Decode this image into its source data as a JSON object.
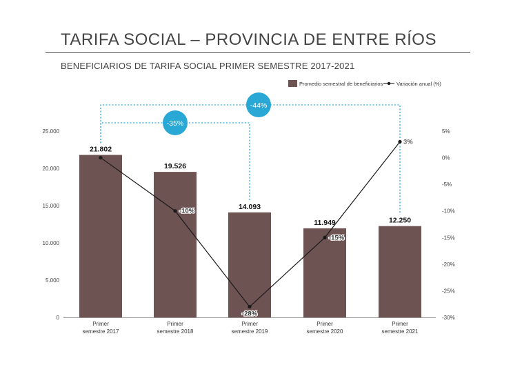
{
  "title": "TARIFA SOCIAL – PROVINCIA DE ENTRE RÍOS",
  "subtitle": "BENEFICIARIOS DE TARIFA SOCIAL PRIMER SEMESTRE 2017-2021",
  "colors": {
    "bar": "#6d5352",
    "line": "#1a1a1a",
    "callout": "#29a8d6",
    "axis": "#999999"
  },
  "chart_data": {
    "type": "bar",
    "categories": [
      [
        "Primer",
        "semestre 2017"
      ],
      [
        "Primer",
        "semestre 2018"
      ],
      [
        "Primer",
        "semestre 2019"
      ],
      [
        "Primer",
        "semestre 2020"
      ],
      [
        "Primer",
        "semestre 2021"
      ]
    ],
    "series": [
      {
        "name": "Promedio semestral de beneficiarios",
        "type": "bar",
        "axis": "left",
        "values": [
          21802,
          19526,
          14093,
          11949,
          12250
        ],
        "labels": [
          "21.802",
          "19.526",
          "14.093",
          "11.949",
          "12.250"
        ]
      },
      {
        "name": "Variación anual (%)",
        "type": "line",
        "axis": "right",
        "values": [
          0,
          -10,
          -28,
          -15,
          3
        ],
        "labels": [
          "",
          "-10%",
          "-28%",
          "-15%",
          "3%"
        ]
      }
    ],
    "y_left": {
      "ylim": [
        0,
        25000
      ],
      "ticks": [
        0,
        5000,
        10000,
        15000,
        20000,
        25000
      ],
      "tick_labels": [
        "0",
        "5.000",
        "10.000",
        "15.000",
        "20.000",
        "25.000"
      ]
    },
    "y_right": {
      "ylim": [
        -30,
        5
      ],
      "ticks": [
        5,
        0,
        -5,
        -10,
        -15,
        -20,
        -25,
        -30
      ],
      "tick_labels": [
        "5%",
        "0%",
        "-5%",
        "-10%",
        "-15%",
        "-20%",
        "-25%",
        "-30%"
      ]
    },
    "legend_position": "top-right",
    "annotations": [
      {
        "from": 0,
        "to": 2,
        "label": "-35%"
      },
      {
        "from": 0,
        "to": 4,
        "label": "-44%"
      }
    ]
  }
}
